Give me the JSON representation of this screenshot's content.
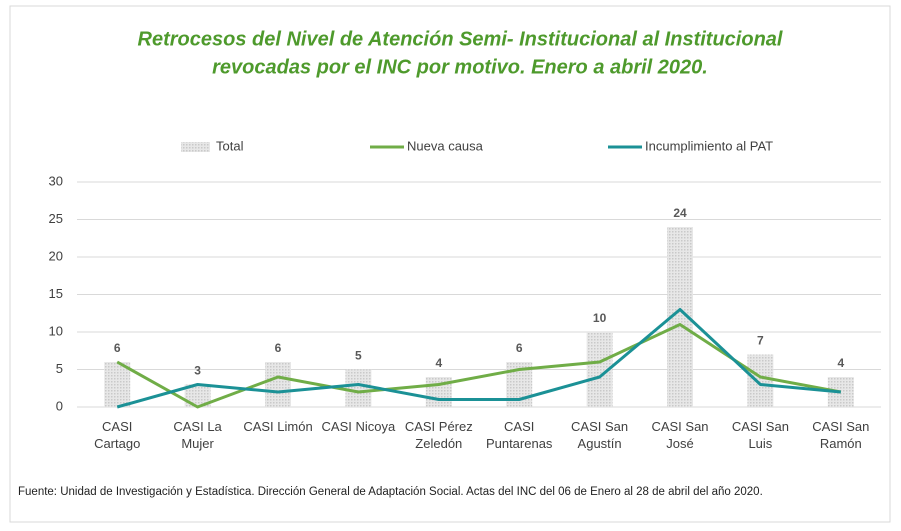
{
  "chart_data": {
    "type": "bar_line",
    "title": "Retrocesos del Nivel de Atención Semi- Institucional al Institucional",
    "subtitle": "revocadas por el INC por motivo. Enero a abril 2020.",
    "categories": [
      "CASI Cartago",
      "CASI La Mujer",
      "CASI Limón",
      "CASI Nicoya",
      "CASI Pérez Zeledón",
      "CASI Puntarenas",
      "CASI San Agustín",
      "CASI San José",
      "CASI San Luis",
      "CASI San Ramón"
    ],
    "series": [
      {
        "name": "Total",
        "type": "bar",
        "color": "#d9d9d9",
        "values": [
          6,
          3,
          6,
          5,
          4,
          6,
          10,
          24,
          7,
          4
        ]
      },
      {
        "name": "Nueva causa",
        "type": "line",
        "color": "#70ad47",
        "values": [
          6,
          0,
          4,
          2,
          3,
          5,
          6,
          11,
          4,
          2
        ]
      },
      {
        "name": "Incumplimiento al PAT",
        "type": "line",
        "color": "#1b9196",
        "values": [
          0,
          3,
          2,
          3,
          1,
          1,
          4,
          13,
          3,
          2
        ]
      }
    ],
    "ylim": [
      0,
      30
    ],
    "yticks": [
      0,
      5,
      10,
      15,
      20,
      25,
      30
    ],
    "grid": true,
    "legend": "top",
    "footnote": "Fuente: Unidad de Investigación y Estadística.  Dirección General de Adaptación Social. Actas del INC del 06 de Enero al 28 de abril del año 2020."
  }
}
